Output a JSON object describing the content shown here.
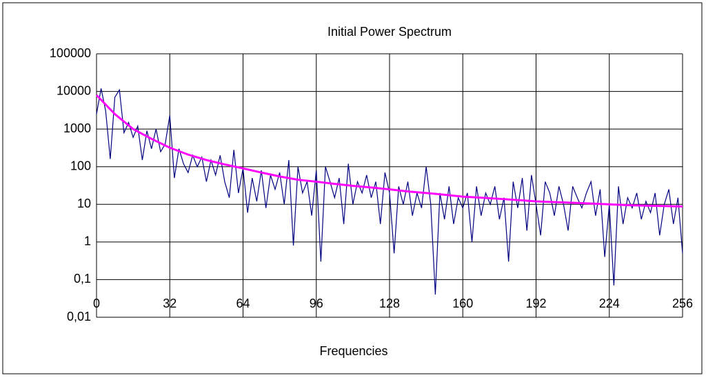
{
  "chart_data": {
    "type": "line",
    "title": "Initial Power Spectrum",
    "x_label": "Frequencies",
    "log_y": true,
    "grid": true,
    "xlim": [
      0,
      256
    ],
    "xticks": [
      0,
      32,
      64,
      96,
      128,
      160,
      192,
      224,
      256
    ],
    "ylim": [
      0.01,
      100000
    ],
    "yticks": [
      {
        "value": 0.01,
        "label": "0,01"
      },
      {
        "value": 0.1,
        "label": "0,1"
      },
      1,
      10,
      100,
      1000,
      10000,
      100000
    ],
    "series": [
      {
        "color": "#000080",
        "x": [
          0,
          2,
          4,
          6,
          8,
          10,
          12,
          14,
          16,
          18,
          20,
          22,
          24,
          26,
          28,
          30,
          32,
          34,
          36,
          38,
          40,
          42,
          44,
          46,
          48,
          50,
          52,
          54,
          56,
          58,
          60,
          62,
          64,
          66,
          68,
          70,
          72,
          74,
          76,
          78,
          80,
          82,
          84,
          86,
          88,
          90,
          92,
          94,
          96,
          98,
          100,
          102,
          104,
          106,
          108,
          110,
          112,
          114,
          116,
          118,
          120,
          122,
          124,
          126,
          128,
          130,
          132,
          134,
          136,
          138,
          140,
          142,
          144,
          146,
          148,
          150,
          152,
          154,
          156,
          158,
          160,
          162,
          164,
          166,
          168,
          170,
          172,
          174,
          176,
          178,
          180,
          182,
          184,
          186,
          188,
          190,
          192,
          194,
          196,
          198,
          200,
          202,
          204,
          206,
          208,
          210,
          212,
          214,
          216,
          218,
          220,
          222,
          224,
          226,
          228,
          230,
          232,
          234,
          236,
          238,
          240,
          242,
          244,
          246,
          248,
          250,
          252,
          254,
          256
        ],
        "values": [
          2500,
          12000,
          3000,
          160,
          7000,
          11000,
          800,
          1500,
          600,
          1200,
          150,
          900,
          300,
          1000,
          250,
          400,
          2300,
          50,
          300,
          120,
          70,
          200,
          100,
          180,
          40,
          150,
          60,
          200,
          40,
          15,
          280,
          20,
          90,
          6,
          50,
          12,
          80,
          8,
          60,
          25,
          70,
          10,
          150,
          0.8,
          100,
          20,
          40,
          5,
          80,
          0.3,
          100,
          40,
          15,
          50,
          3,
          120,
          10,
          40,
          20,
          60,
          15,
          40,
          3,
          70,
          20,
          0.5,
          30,
          10,
          40,
          5,
          20,
          8,
          100,
          10,
          0.04,
          20,
          4,
          30,
          3,
          15,
          8,
          20,
          1,
          30,
          5,
          20,
          10,
          30,
          4,
          15,
          0.3,
          40,
          8,
          50,
          2,
          60,
          10,
          1.5,
          40,
          20,
          5,
          30,
          10,
          2,
          30,
          15,
          8,
          20,
          40,
          5,
          25,
          0.4,
          10,
          0.07,
          30,
          3,
          15,
          8,
          20,
          4,
          12,
          6,
          20,
          1.5,
          10,
          25,
          3,
          15,
          0.5
        ]
      },
      {
        "color": "#ff00ff",
        "x": [
          0,
          8,
          16,
          24,
          32,
          40,
          48,
          56,
          64,
          72,
          80,
          88,
          96,
          104,
          112,
          120,
          128,
          136,
          144,
          152,
          160,
          168,
          176,
          184,
          192,
          200,
          208,
          216,
          224,
          232,
          240,
          248,
          256
        ],
        "values": [
          8000,
          2500,
          1000,
          550,
          320,
          210,
          150,
          115,
          90,
          70,
          55,
          45,
          40,
          35,
          31,
          28,
          25,
          22,
          20,
          18,
          16,
          15,
          14,
          13,
          12,
          11.5,
          11,
          10.5,
          10,
          9.5,
          9.2,
          9,
          8.8
        ]
      }
    ]
  }
}
